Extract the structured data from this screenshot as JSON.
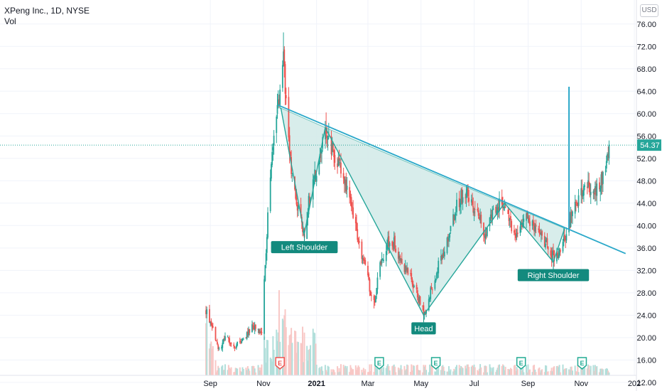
{
  "header": {
    "title": "XPeng Inc., 1D, NYSE",
    "indicator": "Vol"
  },
  "currency_button": "USD",
  "chart_data": {
    "type": "candlestick",
    "yaxis": {
      "ticks": [
        12,
        16,
        20,
        24,
        28,
        32,
        36,
        40,
        44,
        48,
        52,
        56,
        60,
        64,
        68,
        72,
        76
      ],
      "labels": [
        "12.00",
        "16.00",
        "20.00",
        "24.00",
        "28.00",
        "32.00",
        "36.00",
        "40.00",
        "44.00",
        "48.00",
        "52.00",
        "56.00",
        "60.00",
        "64.00",
        "68.00",
        "72.00",
        "76.00"
      ],
      "range": [
        11.6,
        78
      ]
    },
    "xaxis": {
      "labels": [
        "Sep",
        "Nov",
        "2021",
        "Mar",
        "May",
        "Jul",
        "Sep",
        "Nov",
        "202"
      ],
      "bold": "2021",
      "range": [
        "2020-08-27",
        "2022-01-01"
      ]
    },
    "last_price": {
      "value": 54.37,
      "label": "54.37"
    },
    "path": [
      [
        "2020-08-27",
        25
      ],
      [
        "2020-09-05",
        21
      ],
      [
        "2020-09-10",
        18
      ],
      [
        "2020-09-20",
        20
      ],
      [
        "2020-10-01",
        18.5
      ],
      [
        "2020-10-10",
        20
      ],
      [
        "2020-10-20",
        22
      ],
      [
        "2020-10-30",
        21
      ],
      [
        "2020-11-02",
        30
      ],
      [
        "2020-11-07",
        45
      ],
      [
        "2020-11-13",
        55
      ],
      [
        "2020-11-20",
        63
      ],
      [
        "2020-11-24",
        70
      ],
      [
        "2020-11-28",
        58
      ],
      [
        "2020-12-04",
        48
      ],
      [
        "2020-12-10",
        44
      ],
      [
        "2020-12-18",
        38.5
      ],
      [
        "2020-12-25",
        46
      ],
      [
        "2021-01-02",
        50
      ],
      [
        "2021-01-07",
        54
      ],
      [
        "2021-01-12",
        57.5
      ],
      [
        "2021-01-18",
        54
      ],
      [
        "2021-01-24",
        52
      ],
      [
        "2021-02-01",
        48
      ],
      [
        "2021-02-08",
        44
      ],
      [
        "2021-02-12",
        42
      ],
      [
        "2021-02-18",
        38
      ],
      [
        "2021-02-25",
        33
      ],
      [
        "2021-03-03",
        29
      ],
      [
        "2021-03-08",
        26
      ],
      [
        "2021-03-14",
        32
      ],
      [
        "2021-03-20",
        35
      ],
      [
        "2021-03-27",
        38
      ],
      [
        "2021-04-03",
        36
      ],
      [
        "2021-04-10",
        33
      ],
      [
        "2021-04-17",
        31
      ],
      [
        "2021-04-24",
        29
      ],
      [
        "2021-04-30",
        26
      ],
      [
        "2021-05-05",
        24
      ],
      [
        "2021-05-10",
        27
      ],
      [
        "2021-05-17",
        31
      ],
      [
        "2021-05-24",
        34
      ],
      [
        "2021-06-01",
        38
      ],
      [
        "2021-06-08",
        42
      ],
      [
        "2021-06-15",
        45
      ],
      [
        "2021-06-22",
        46
      ],
      [
        "2021-06-29",
        44
      ],
      [
        "2021-07-06",
        42
      ],
      [
        "2021-07-13",
        39
      ],
      [
        "2021-07-20",
        41
      ],
      [
        "2021-07-27",
        43
      ],
      [
        "2021-08-02",
        44
      ],
      [
        "2021-08-09",
        41
      ],
      [
        "2021-08-16",
        38
      ],
      [
        "2021-08-23",
        40
      ],
      [
        "2021-08-30",
        42
      ],
      [
        "2021-09-06",
        40
      ],
      [
        "2021-09-13",
        38
      ],
      [
        "2021-09-20",
        37
      ],
      [
        "2021-09-27",
        35
      ],
      [
        "2021-10-04",
        34
      ],
      [
        "2021-10-11",
        37
      ],
      [
        "2021-10-18",
        40
      ],
      [
        "2021-10-25",
        44
      ],
      [
        "2021-11-01",
        46
      ],
      [
        "2021-11-08",
        47
      ],
      [
        "2021-11-15",
        46
      ],
      [
        "2021-11-22",
        48
      ],
      [
        "2021-11-29",
        50
      ],
      [
        "2021-12-04",
        54.37
      ]
    ],
    "spike": {
      "date": "2021-10-18",
      "high": 64.8,
      "low": 39.5
    },
    "neckline": {
      "from": [
        "2020-11-18",
        61.5
      ],
      "to": [
        "2021-12-22",
        35
      ]
    },
    "pattern": [
      {
        "name": "Left Shoulder",
        "points": [
          [
            "2020-11-21",
            61
          ],
          [
            "2020-12-18",
            38.5
          ],
          [
            "2021-01-11",
            57.5
          ]
        ],
        "label": "Left Shoulder"
      },
      {
        "name": "Head",
        "points": [
          [
            "2021-01-11",
            57.5
          ],
          [
            "2021-05-04",
            24
          ],
          [
            "2021-08-05",
            44
          ]
        ],
        "label": "Head"
      },
      {
        "name": "Right Shoulder",
        "points": [
          [
            "2021-08-05",
            44
          ],
          [
            "2021-09-30",
            33.5
          ],
          [
            "2021-10-13",
            39.5
          ]
        ],
        "label": "Right Shoulder"
      }
    ],
    "earnings_markers": [
      {
        "date": "2020-11-20",
        "glyph": "E"
      },
      {
        "date": "2021-03-14",
        "glyph": "E"
      },
      {
        "date": "2021-05-18",
        "glyph": "E"
      },
      {
        "date": "2021-08-24",
        "glyph": "E"
      },
      {
        "date": "2021-11-02",
        "glyph": "E"
      }
    ],
    "colors": {
      "up": "#26a69a",
      "down": "#ef5350",
      "up_vol": "#b2dfdb",
      "down_vol": "#f8c8c6",
      "pattern_fill": "#d4ebe9",
      "pattern_line": "#26a69a",
      "neckline": "#2aa8c9",
      "last_line": "#26a69a",
      "label_bg": "#138a7e",
      "earnings": "#22ab94",
      "earnings_first": "#ef5350"
    }
  }
}
